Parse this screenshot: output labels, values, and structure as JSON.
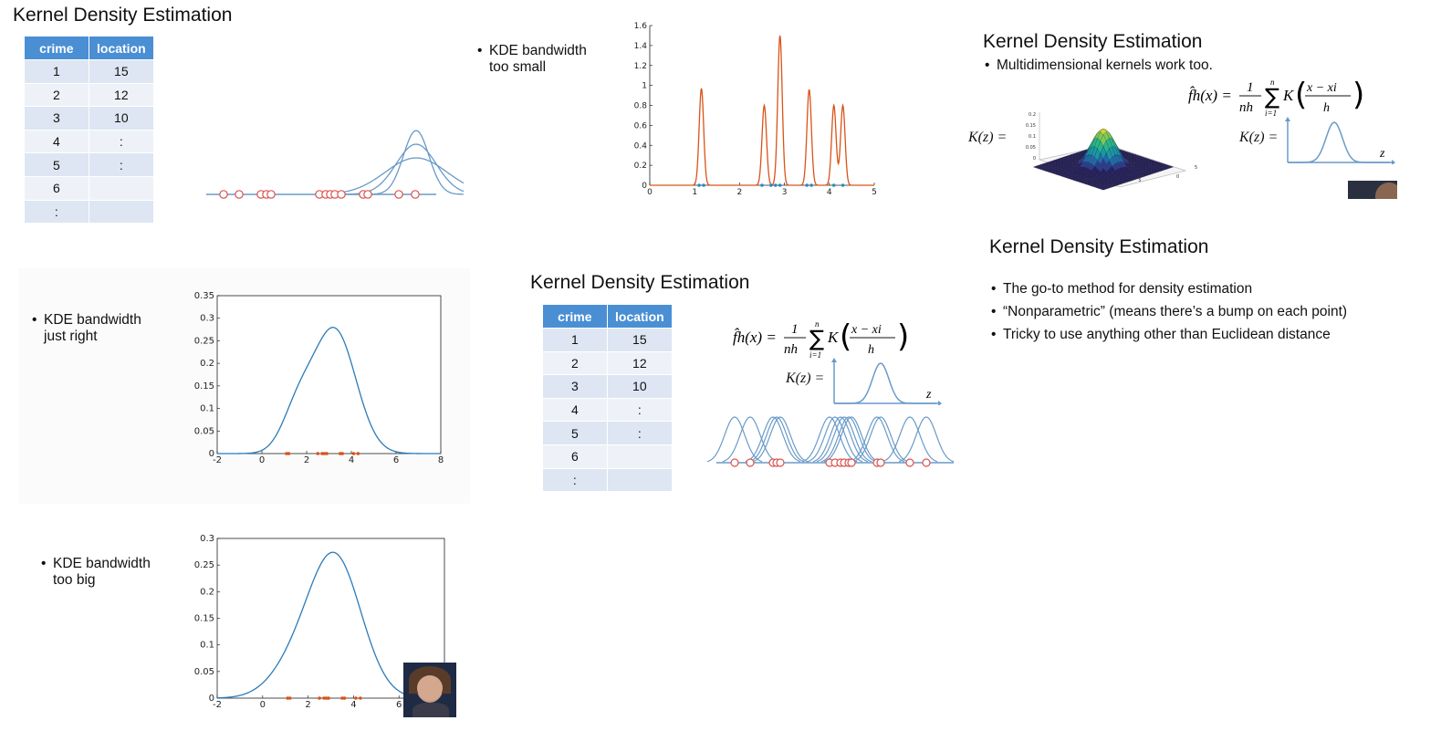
{
  "slide_title": "Kernel Density Estimation",
  "table": {
    "headers": [
      "crime",
      "location"
    ],
    "rows": [
      [
        "1",
        "15"
      ],
      [
        "2",
        "12"
      ],
      [
        "3",
        "10"
      ],
      [
        "4",
        ":"
      ],
      [
        "5",
        ":"
      ],
      [
        "6",
        ""
      ],
      [
        ":",
        ""
      ]
    ]
  },
  "bullets": {
    "too_small": [
      "KDE bandwidth",
      "too small"
    ],
    "just_right": [
      "KDE bandwidth",
      "just right"
    ],
    "too_big": [
      "KDE bandwidth",
      "too big"
    ],
    "multidim": "Multidimensional kernels work too.",
    "summary": [
      "The go-to method for density estimation",
      "“Nonparametric” (means there’s a bump on each point)",
      "Tricky to use anything other than Euclidean distance"
    ],
    "bullet_char": "•"
  },
  "formula": {
    "lhs": "f̂h(x) =",
    "frac_num": "1",
    "frac_den": "nh",
    "sum_top": "n",
    "sum_bottom": "i=1",
    "kernel": "K",
    "arg_num": "x − xi",
    "arg_den": "h",
    "kz": "K(z) =",
    "z": "z"
  },
  "colors": {
    "header_blue": "#4a8fd4",
    "kde_curve": "#2b7bb9",
    "narrow_curve": "#d95319",
    "data_points": "#d95319",
    "sketch_blue": "#6a9ac8",
    "sketch_red": "#d9534f"
  },
  "data_points": [
    1.1,
    1.2,
    2.5,
    2.7,
    2.8,
    2.9,
    3.5,
    3.6,
    4.1,
    4.3
  ],
  "chart_data": [
    {
      "type": "line",
      "name_hint": "kde-too-small",
      "xlim": [
        0,
        5
      ],
      "ylim": [
        0,
        1.6
      ],
      "xticks": [
        0,
        1,
        2,
        3,
        4,
        5
      ],
      "yticks": [
        0,
        0.2,
        0.4,
        0.6,
        0.8,
        1,
        1.2,
        1.4,
        1.6
      ],
      "bandwidth": 0.05,
      "peaks": [
        [
          1.15,
          0.97
        ],
        [
          2.55,
          0.8
        ],
        [
          2.9,
          1.5
        ],
        [
          3.55,
          0.96
        ],
        [
          4.1,
          0.8
        ],
        [
          4.3,
          0.8
        ]
      ],
      "grid": false
    },
    {
      "type": "line",
      "name_hint": "kde-just-right",
      "xlim": [
        -2,
        8
      ],
      "ylim": [
        0,
        0.35
      ],
      "xticks": [
        -2,
        0,
        2,
        4,
        6,
        8
      ],
      "yticks": [
        0,
        0.05,
        0.1,
        0.15,
        0.2,
        0.25,
        0.3,
        0.35
      ],
      "bandwidth": 0.6,
      "peak": [
        3.1,
        0.318
      ],
      "grid": false
    },
    {
      "type": "line",
      "name_hint": "kde-too-big",
      "xlim": [
        -2,
        8
      ],
      "ylim": [
        0,
        0.3
      ],
      "xticks": [
        -2,
        0,
        2,
        4,
        6
      ],
      "yticks": [
        0,
        0.05,
        0.1,
        0.15,
        0.2,
        0.25,
        0.3
      ],
      "bandwidth": 0.95,
      "peak": [
        3.1,
        0.288
      ],
      "grid": false
    },
    {
      "type": "heatmap",
      "name_hint": "2d-gaussian-surface",
      "zticks": [
        0,
        0.05,
        0.1,
        0.15,
        0.2
      ],
      "xticks": [
        -5,
        0,
        5
      ],
      "yticks": [
        -5,
        0,
        5
      ]
    }
  ]
}
